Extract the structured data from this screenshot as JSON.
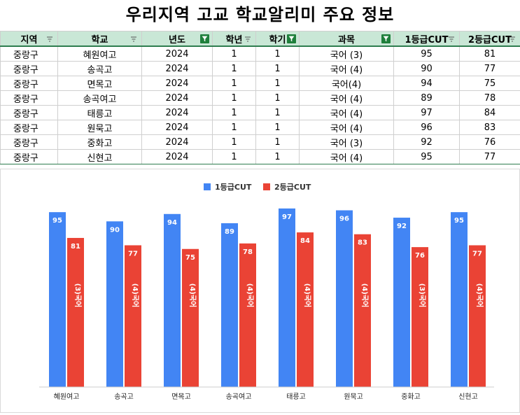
{
  "title": "우리지역 고교 학교알리미 주요 정보",
  "table": {
    "headers": [
      "지역",
      "학교",
      "년도",
      "학년",
      "학기",
      "과목",
      "1등급CUT",
      "2등급CUT"
    ],
    "filtered_columns": [
      2,
      4,
      5
    ],
    "rows": [
      [
        "중랑구",
        "혜원여고",
        "2024",
        "1",
        "1",
        "국어 (3)",
        "95",
        "81"
      ],
      [
        "중랑구",
        "송곡고",
        "2024",
        "1",
        "1",
        "국어 (4)",
        "90",
        "77"
      ],
      [
        "중랑구",
        "면목고",
        "2024",
        "1",
        "1",
        "국어(4)",
        "94",
        "75"
      ],
      [
        "중랑구",
        "송곡여고",
        "2024",
        "1",
        "1",
        "국어 (4)",
        "89",
        "78"
      ],
      [
        "중랑구",
        "태릉고",
        "2024",
        "1",
        "1",
        "국어 (4)",
        "97",
        "84"
      ],
      [
        "중랑구",
        "원묵고",
        "2024",
        "1",
        "1",
        "국어 (4)",
        "96",
        "83"
      ],
      [
        "중랑구",
        "중화고",
        "2024",
        "1",
        "1",
        "국어 (3)",
        "92",
        "76"
      ],
      [
        "중랑구",
        "신현고",
        "2024",
        "1",
        "1",
        "국어 (4)",
        "95",
        "77"
      ]
    ]
  },
  "chart_data": {
    "type": "bar",
    "categories": [
      "혜원여고",
      "송곡고",
      "면목고",
      "송곡여고",
      "태릉고",
      "원묵고",
      "중화고",
      "신현고"
    ],
    "series": [
      {
        "name": "1등급CUT",
        "values": [
          95,
          90,
          94,
          89,
          97,
          96,
          92,
          95
        ],
        "color": "#4285f4"
      },
      {
        "name": "2등급CUT",
        "values": [
          81,
          77,
          75,
          78,
          84,
          83,
          76,
          77
        ],
        "color": "#ea4335"
      }
    ],
    "bar_inner_labels": [
      "(3)국어",
      "(4)국어",
      "(4)국어",
      "(4)국어",
      "(4)국어",
      "(4)국어",
      "(3)국어",
      "(4)국어"
    ],
    "legend_position": "top",
    "ylim": [
      0,
      100
    ],
    "grid": false
  }
}
